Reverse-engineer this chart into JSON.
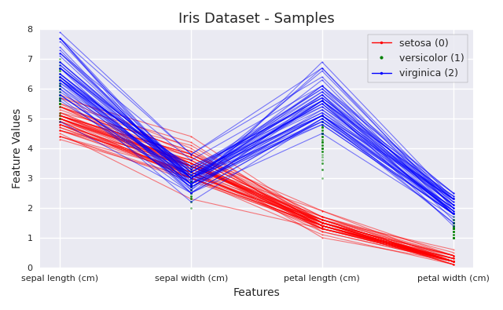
{
  "title": "Iris Dataset - Samples",
  "xlabel": "Features",
  "ylabel": "Feature Values",
  "features": [
    "sepal length (cm)",
    "sepal width (cm)",
    "petal length (cm)",
    "petal width (cm)"
  ],
  "class_names": [
    "setosa (0)",
    "versicolor (1)",
    "virginica (2)"
  ],
  "colors": [
    "red",
    "green",
    "blue"
  ],
  "markers": [
    ".",
    ".",
    "."
  ],
  "linestyles": [
    "-",
    "-",
    "-"
  ],
  "alpha": 0.5,
  "linewidth": 0.8,
  "markersize": 3,
  "ylim": [
    0,
    8
  ],
  "yticks": [
    0,
    1,
    2,
    3,
    4,
    5,
    6,
    7,
    8
  ],
  "legend_loc": "upper right",
  "title_fontsize": 13,
  "style": "seaborn-v0_8"
}
